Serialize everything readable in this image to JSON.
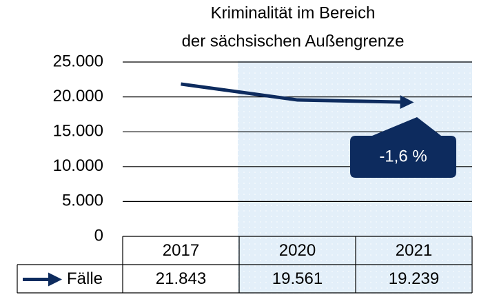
{
  "chart_data": {
    "type": "line",
    "title": [
      "Kriminalität im Bereich",
      "der sächsischen Außengrenze"
    ],
    "categories": [
      "2017",
      "2020",
      "2021"
    ],
    "series": [
      {
        "name": "Fälle",
        "color": "#0d2b5e",
        "values": [
          21843,
          19561,
          19239
        ],
        "value_labels": [
          "21.843",
          "19.561",
          "19.239"
        ]
      }
    ],
    "ylim": [
      0,
      25000
    ],
    "yticks": [
      0,
      {
        "value": 5000,
        "label": "5.000"
      },
      {
        "value": 10000,
        "label": "10.000"
      },
      {
        "value": 15000,
        "label": "15.000"
      },
      {
        "value": 20000,
        "label": "20.000"
      },
      {
        "value": 25000,
        "label": "25.000"
      }
    ],
    "grid": true,
    "annotation": "-1,6 %"
  }
}
